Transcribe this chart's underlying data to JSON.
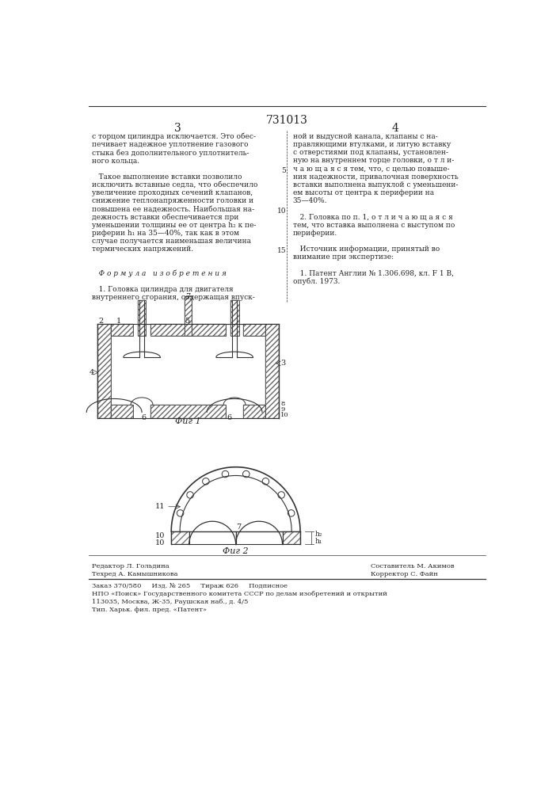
{
  "patent_number": "731013",
  "fig1_label": "Фиг 1",
  "fig2_label": "Фиг 2",
  "background_color": "#ffffff",
  "text_color": "#222222",
  "line_color": "#333333",
  "left_column_text": [
    "с торцом цилиндра исключается. Это обес-",
    "печивает надежное уплотнение газового",
    "стыка без дополнительного уплотнитель-",
    "ного кольца.",
    "",
    "   Такое выполнение вставки позволило",
    "исключить вставные седла, что обеспечило",
    "увеличение проходных сечений клапанов,",
    "снижение теплонапряженности головки и",
    "повышена ее надежность. Наибольшая на-",
    "дежность вставки обеспечивается при",
    "уменьшении толщины ее от центра h₂ к пе-",
    "риферии h₁ на 35—40%, так как в этом",
    "случае получается наименьшая величина",
    "термических напряжений.",
    "",
    "",
    "   Ф о р м у л а   и з о б р е т е н и я",
    "",
    "   1. Головка цилиндра для двигателя",
    "внутреннего сгорания, содержащая впуск-"
  ],
  "right_column_text": [
    "ной и выдусной канала, клапаны с на-",
    "правляющими втулками, и литую вставку",
    "с отверстиями под клапаны, установлен-",
    "ную на внутреннем торце головки, о т л и-",
    "ч а ю щ а я с я тем, что, с целью повыше-",
    "ния надежности, привалочная поверхность",
    "вставки выполнена выпуклой с уменьшени-",
    "ем высоты от центра к периферии на",
    "35—40%.",
    "",
    "   2. Головка по п. 1, о т л и ч а ю щ а я с я",
    "тем, что вставка выполнена с выступом по",
    "периферии.",
    "",
    "   Источник информации, принятый во",
    "внимание при экспертизе:",
    "",
    "   1. Патент Англии № 1.306.698, кл. F 1 B,",
    "опубл. 1973."
  ],
  "footer_row1": "Редактор Л. Гольдина",
  "footer_row1r": "Составитель М. Акимов",
  "footer_row2": "Техред А. Камышникова",
  "footer_row2r": "Корректор С. Файн",
  "footer_row3": "Заказ 370/580     Изд. № 265     Тираж 626     Подписное",
  "footer_row4": "НПО «Поиск» Государственного комитета СССР по делам изобретений и открытий",
  "footer_row5": "113035, Москва, Ж-35, Раушская наб., д. 4/5",
  "footer_row6": "Тип. Харьк. фил. пред. «Патент»"
}
